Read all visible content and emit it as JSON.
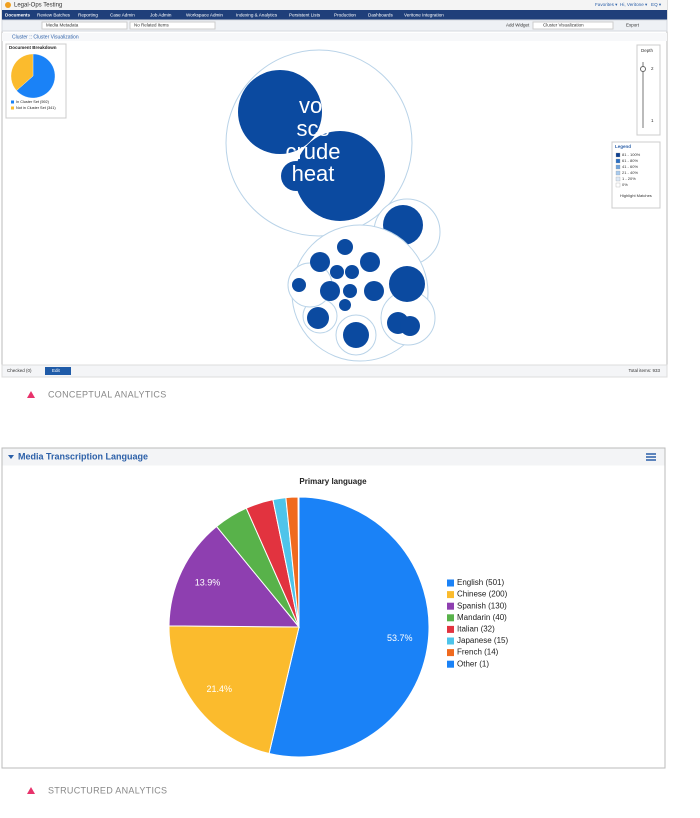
{
  "app": {
    "app_title": "Legal-Ops Testing",
    "user_menu": [
      "Favorites ▾",
      "Hi, Veritone ▾",
      "EQ ▾"
    ],
    "nav_tabs": [
      "Documents",
      "Review Batches",
      "Reporting",
      "Case Admin",
      "Job Admin",
      "Workspace Admin",
      "Indexing & Analytics",
      "Persistent Lists",
      "Production",
      "Dashboards",
      "Veritone Integration"
    ],
    "toolbar": {
      "view": "Media Metadata",
      "related": "No Related Items",
      "add_widget": "Add Widget",
      "widget": "Cluster Visualization",
      "export": "Export"
    },
    "panel_title": "Cluster :: Cluster Visualization",
    "cluster_words": [
      "vol",
      "scs",
      "crude",
      "heat"
    ],
    "depth": {
      "title": "Depth",
      "ticks": [
        "2",
        "1"
      ]
    },
    "legend": {
      "title": "Legend",
      "items": [
        {
          "label": "81 - 100%",
          "color": "#0b3f91"
        },
        {
          "label": "61 - 80%",
          "color": "#2a6fc4"
        },
        {
          "label": "41 - 60%",
          "color": "#6ea3dd"
        },
        {
          "label": "21 - 40%",
          "color": "#a9cbef"
        },
        {
          "label": "1 - 20%",
          "color": "#dde9f7"
        },
        {
          "label": "0%",
          "color": "#ffffff"
        }
      ],
      "highlight": "Highlight Matches"
    },
    "footer": {
      "checked": "Checked (0)",
      "edit": "Edit",
      "total": "Total items: 933"
    },
    "caption_top": "CONCEPTUAL ANALYTICS",
    "widget_title": "Media Transcription Language",
    "caption_bottom": "STRUCTURED ANALYTICS"
  },
  "chart_data": [
    {
      "type": "pie",
      "title": "Primary language",
      "categories": [
        "English (501)",
        "Chinese (200)",
        "Spanish (130)",
        "Mandarin (40)",
        "Italian (32)",
        "Japanese (15)",
        "French (14)",
        "Other (1)"
      ],
      "values": [
        501,
        200,
        130,
        40,
        32,
        15,
        14,
        1
      ],
      "value_labels": [
        "53.7%",
        "21.4%",
        "13.9%",
        null,
        null,
        null,
        null,
        null
      ],
      "colors": [
        "#1a82f7",
        "#fbbb2d",
        "#8e3fb0",
        "#58b24a",
        "#e2333f",
        "#4ec4ea",
        "#f06a1e",
        "#1a82f7"
      ]
    },
    {
      "type": "pie",
      "title": "Document Breakdown",
      "categories": [
        "In Cluster Set (592)",
        "Not in Cluster Set (341)"
      ],
      "values": [
        592,
        341
      ],
      "colors": [
        "#1a82f7",
        "#fbbb2d"
      ]
    }
  ]
}
